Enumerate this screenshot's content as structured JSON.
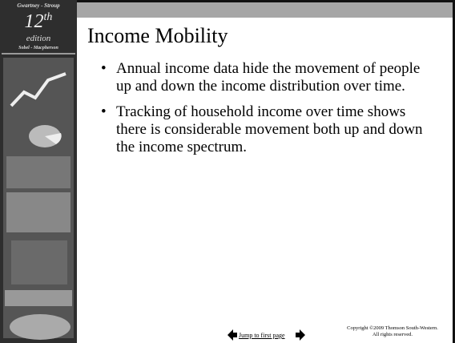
{
  "sidebar": {
    "authors_top": "Gwartney - Stroup",
    "edition_number": "12",
    "edition_suffix": "th",
    "edition_word": "edition",
    "authors_bottom": "Sobel - Macpherson"
  },
  "slide": {
    "title": "Income Mobility",
    "bullets": [
      "Annual income data hide the movement of people up and down the income distribution over time.",
      "Tracking of household income over time shows there is considerable movement both up and down the income spectrum."
    ]
  },
  "footer": {
    "link": "Jump to first page",
    "copyright": [
      "Copyright ©2009  Thomson South-Western.",
      "All rights reserved."
    ]
  }
}
